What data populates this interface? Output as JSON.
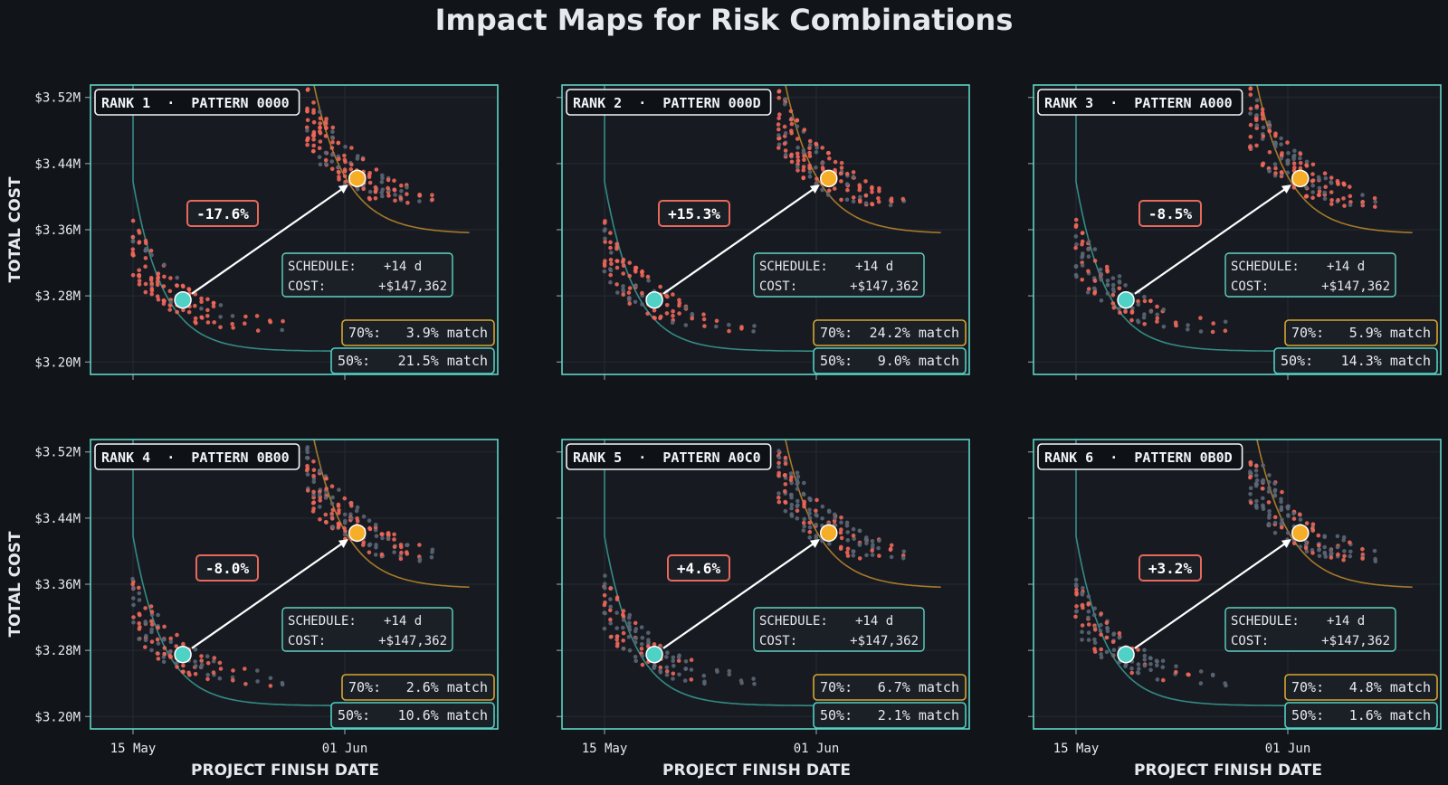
{
  "title": "Impact Maps for Risk Combinations",
  "ylabel": "TOTAL COST",
  "xlabel": "PROJECT FINISH DATE",
  "colors": {
    "background": "#111419",
    "panel": "#171b21",
    "frame": "#5fd3c4",
    "baseline_point": "#4fd1c5",
    "risk_point": "#f6ad27",
    "scatter_hit": "#f0675a",
    "scatter_miss": "#5b6674",
    "badge_border": "#e8685a",
    "band70": "#d7a531",
    "band50": "#4fd1c5",
    "text": "#e6e9ee"
  },
  "chart_data": {
    "type": "scatter",
    "x_ticks": [
      "15 May",
      "01 Jun"
    ],
    "y_ticks": [
      "$3.20M",
      "$3.28M",
      "$3.36M",
      "$3.44M",
      "$3.52M"
    ],
    "ylim": [
      3.185,
      3.535
    ],
    "y_unit": "$M",
    "grid": true,
    "panels": [
      {
        "rank": "1",
        "pattern": "0000",
        "rank_label": "RANK 1  ·  PATTERN 0000",
        "delta": "-17.6%",
        "schedule_label": "SCHEDULE:",
        "schedule_value": "+14 d",
        "cost_label": "COST:",
        "cost_value": "+$147,362",
        "match70_label": "70%:",
        "match70_value": "3.9% match",
        "match50_label": "50%:",
        "match50_value": "21.5% match",
        "baseline": {
          "day": 19,
          "cost": 3.275
        },
        "risk": {
          "day": 33,
          "cost": 3.422
        },
        "hit_rate": 0.8
      },
      {
        "rank": "2",
        "pattern": "000D",
        "rank_label": "RANK 2  ·  PATTERN 000D",
        "delta": "+15.3%",
        "schedule_label": "SCHEDULE:",
        "schedule_value": "+14 d",
        "cost_label": "COST:",
        "cost_value": "+$147,362",
        "match70_label": "70%:",
        "match70_value": "24.2% match",
        "match50_label": "50%:",
        "match50_value": "9.0% match",
        "baseline": {
          "day": 19,
          "cost": 3.275
        },
        "risk": {
          "day": 33,
          "cost": 3.422
        },
        "hit_rate": 0.7
      },
      {
        "rank": "3",
        "pattern": "A000",
        "rank_label": "RANK 3  ·  PATTERN A000",
        "delta": "-8.5%",
        "schedule_label": "SCHEDULE:",
        "schedule_value": "+14 d",
        "cost_label": "COST:",
        "cost_value": "+$147,362",
        "match70_label": "70%:",
        "match70_value": "5.9% match",
        "match50_label": "50%:",
        "match50_value": "14.3% match",
        "baseline": {
          "day": 19,
          "cost": 3.275
        },
        "risk": {
          "day": 33,
          "cost": 3.422
        },
        "hit_rate": 0.5
      },
      {
        "rank": "4",
        "pattern": "0B00",
        "rank_label": "RANK 4  ·  PATTERN 0B00",
        "delta": "-8.0%",
        "schedule_label": "SCHEDULE:",
        "schedule_value": "+14 d",
        "cost_label": "COST:",
        "cost_value": "+$147,362",
        "match70_label": "70%:",
        "match70_value": "2.6% match",
        "match50_label": "50%:",
        "match50_value": "10.6% match",
        "baseline": {
          "day": 19,
          "cost": 3.275
        },
        "risk": {
          "day": 33,
          "cost": 3.422
        },
        "hit_rate": 0.6
      },
      {
        "rank": "5",
        "pattern": "A0C0",
        "rank_label": "RANK 5  ·  PATTERN A0C0",
        "delta": "+4.6%",
        "schedule_label": "SCHEDULE:",
        "schedule_value": "+14 d",
        "cost_label": "COST:",
        "cost_value": "+$147,362",
        "match70_label": "70%:",
        "match70_value": "6.7% match",
        "match50_label": "50%:",
        "match50_value": "2.1% match",
        "baseline": {
          "day": 19,
          "cost": 3.275
        },
        "risk": {
          "day": 33,
          "cost": 3.422
        },
        "hit_rate": 0.3
      },
      {
        "rank": "6",
        "pattern": "0B0D",
        "rank_label": "RANK 6  ·  PATTERN 0B0D",
        "delta": "+3.2%",
        "schedule_label": "SCHEDULE:",
        "schedule_value": "+14 d",
        "cost_label": "COST:",
        "cost_value": "+$147,362",
        "match70_label": "70%:",
        "match70_value": "4.8% match",
        "match50_label": "50%:",
        "match50_value": "1.6% match",
        "baseline": {
          "day": 19,
          "cost": 3.275
        },
        "risk": {
          "day": 33,
          "cost": 3.422
        },
        "hit_rate": 0.35
      }
    ]
  }
}
